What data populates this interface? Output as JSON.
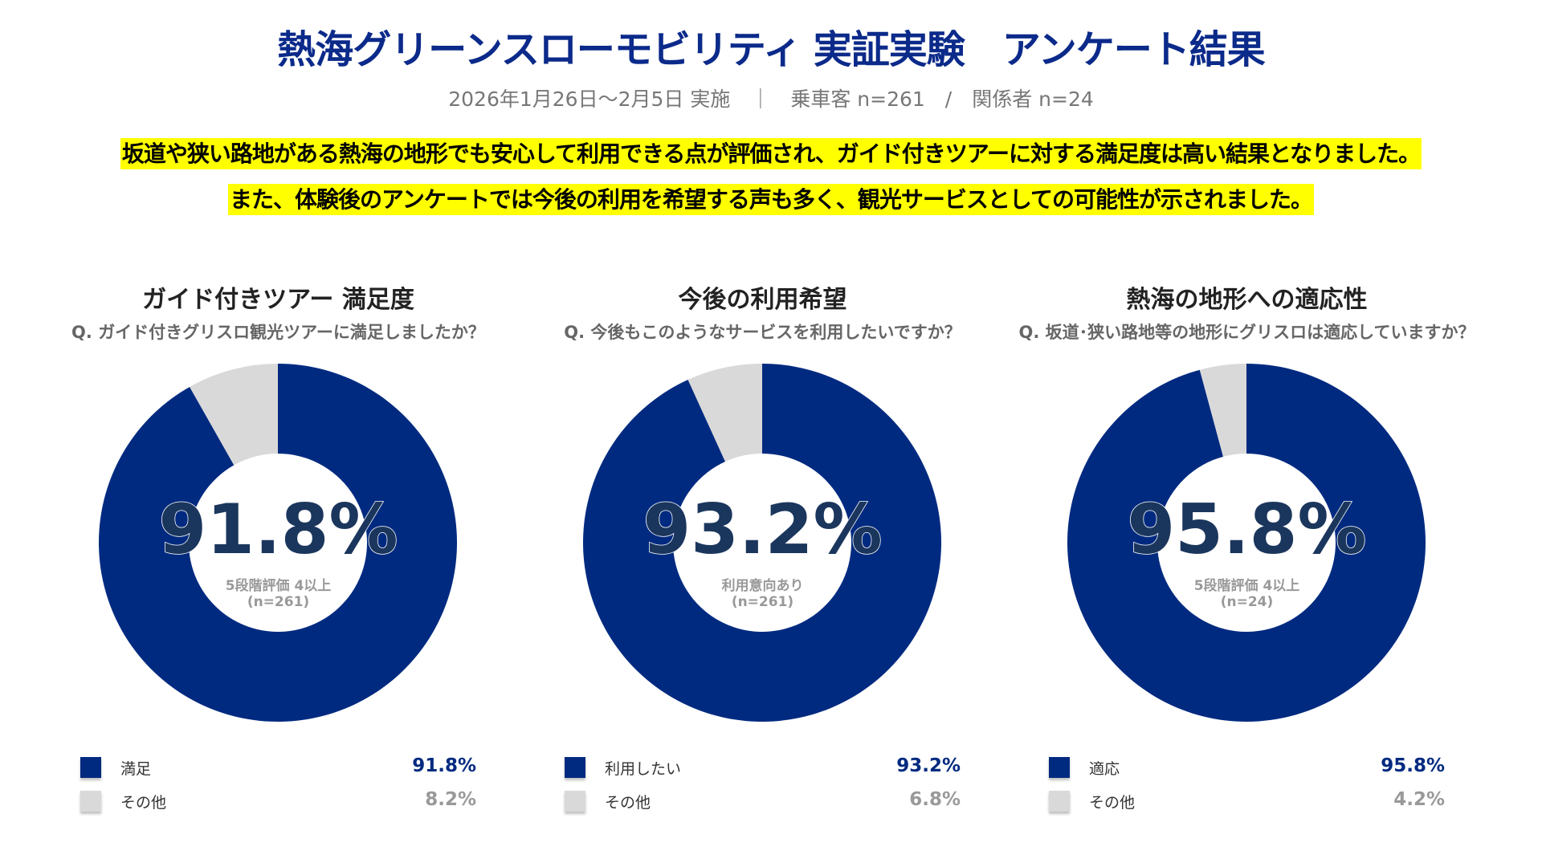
{
  "header": {
    "title": "熱海グリーンスローモビリティ 実証実験　アンケート結果",
    "subtitle": "2026年1月26日～2月5日 実施　｜　乗車客 n=261　/　関係者 n=24"
  },
  "highlights": [
    "坂道や狭い路地がある熱海の地形でも安心して利用できる点が評価され、ガイド付きツアーに対する満足度は高い結果となりました。",
    "また、体験後のアンケートでは今後の利用を希望する声も多く、観光サービスとしての可能性が示されました。"
  ],
  "colors": {
    "primary": "#002a80",
    "other": "#d9d9d9",
    "highlight": "#ffff00",
    "big_text": "#1b365d"
  },
  "chart_data": [
    {
      "type": "pie",
      "title": "ガイド付きツアー 満足度",
      "question": "Q. ガイド付きグリスロ観光ツアーに満足しましたか？",
      "center_value": "91.8%",
      "center_caption": "5段階評価 4以上",
      "center_n": "(n=261)",
      "categories": [
        "満足",
        "その他"
      ],
      "values": [
        91.8,
        8.2
      ],
      "labels": [
        "91.8%",
        "8.2%"
      ]
    },
    {
      "type": "pie",
      "title": "今後の利用希望",
      "question": "Q. 今後もこのようなサービスを利用したいですか？",
      "center_value": "93.2%",
      "center_caption": "利用意向あり",
      "center_n": "(n=261)",
      "categories": [
        "利用したい",
        "その他"
      ],
      "values": [
        93.2,
        6.8
      ],
      "labels": [
        "93.2%",
        "6.8%"
      ]
    },
    {
      "type": "pie",
      "title": "熱海の地形への適応性",
      "question": "Q. 坂道･狭い路地等の地形にグリスロは適応していますか？",
      "center_value": "95.8%",
      "center_caption": "5段階評価 4以上",
      "center_n": "(n=24)",
      "categories": [
        "適応",
        "その他"
      ],
      "values": [
        95.8,
        4.2
      ],
      "labels": [
        "95.8%",
        "4.2%"
      ]
    }
  ]
}
